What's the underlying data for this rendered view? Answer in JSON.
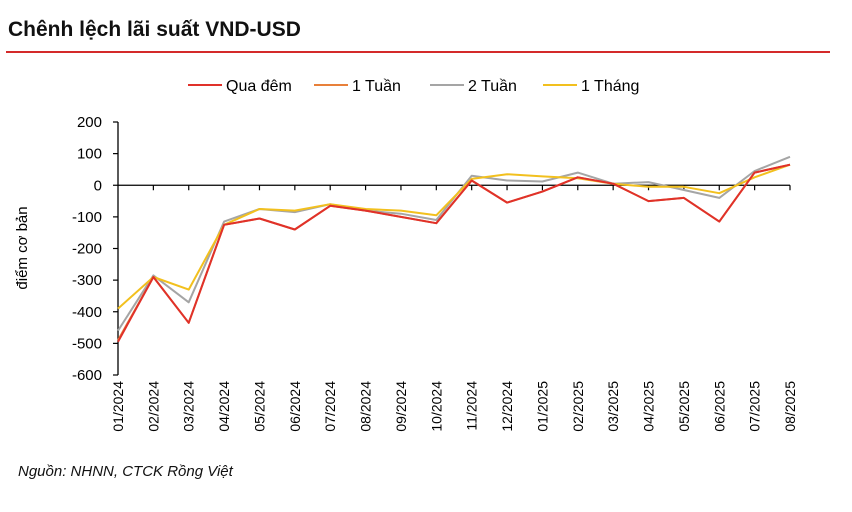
{
  "title": "Chênh lệch lãi suất VND-USD",
  "source": "Nguồn: NHNN, CTCK Rồng Việt",
  "chart_data": {
    "type": "line",
    "title": "Chênh lệch lãi suất VND-USD",
    "xlabel": "",
    "ylabel": "điểm cơ bản",
    "ylim": [
      -600,
      200
    ],
    "yticks": [
      200,
      100,
      0,
      -100,
      -200,
      -300,
      -400,
      -500,
      -600
    ],
    "legend_position": "top",
    "categories": [
      "01/2024",
      "02/2024",
      "03/2024",
      "04/2024",
      "05/2024",
      "06/2024",
      "07/2024",
      "08/2024",
      "09/2024",
      "10/2024",
      "11/2024",
      "12/2024",
      "01/2025",
      "02/2025",
      "03/2025",
      "04/2025",
      "05/2025",
      "06/2025",
      "07/2025",
      "08/2025"
    ],
    "series": [
      {
        "name": "Qua đêm",
        "color": "#e0312a",
        "values": [
          -495,
          -290,
          -435,
          -125,
          -105,
          -140,
          -65,
          -80,
          -100,
          -120,
          15,
          -55,
          -20,
          25,
          5,
          -50,
          -40,
          -115,
          40,
          65
        ]
      },
      {
        "name": "1 Tuần",
        "color": "#e8803a",
        "values": [
          -490,
          -290,
          -435,
          -125,
          -105,
          -140,
          -65,
          -80,
          -100,
          -120,
          15,
          -55,
          -20,
          25,
          5,
          -50,
          -40,
          -115,
          40,
          65
        ]
      },
      {
        "name": "2 Tuần",
        "color": "#a5a5a5",
        "values": [
          -460,
          -285,
          -370,
          -115,
          -75,
          -85,
          -60,
          -80,
          -90,
          -110,
          30,
          15,
          12,
          40,
          5,
          10,
          -15,
          -40,
          45,
          90
        ]
      },
      {
        "name": "1 Tháng",
        "color": "#f2c01e",
        "values": [
          -390,
          -290,
          -330,
          -125,
          -75,
          -80,
          -60,
          -75,
          -80,
          -95,
          20,
          35,
          28,
          22,
          5,
          -5,
          -5,
          -25,
          25,
          65
        ]
      }
    ]
  }
}
